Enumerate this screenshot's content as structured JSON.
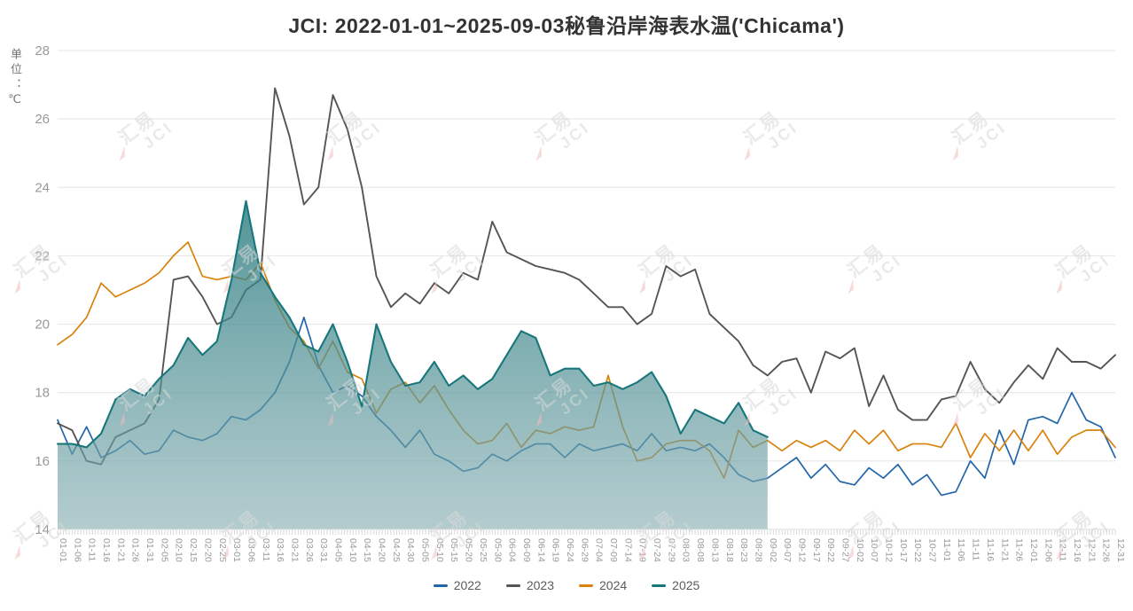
{
  "title": "JCI: 2022-01-01~2025-09-03秘鲁沿岸海表水温('Chicama')",
  "y_axis": {
    "unit_label": "单位：℃",
    "ticks": [
      14,
      16,
      18,
      20,
      22,
      24,
      26,
      28
    ]
  },
  "watermark": {
    "text_cn": "汇易",
    "text_en": "JCI"
  },
  "colors": {
    "grid": "#e4e4e4",
    "axis_line": "#d9d9d9",
    "tick_text": "#999999",
    "title_text": "#333333"
  },
  "chart_data": {
    "type": "line",
    "title": "JCI: 2022-01-01~2025-09-03秘鲁沿岸海表水温('Chicama')",
    "xlabel": "",
    "ylabel": "单位：℃",
    "ylim": [
      14,
      28
    ],
    "y_tick_step": 2,
    "grid": true,
    "legend_position": "bottom",
    "x": [
      "01-01",
      "01-06",
      "01-11",
      "01-16",
      "01-21",
      "01-26",
      "01-31",
      "02-05",
      "02-10",
      "02-15",
      "02-20",
      "02-25",
      "03-01",
      "03-06",
      "03-11",
      "03-16",
      "03-21",
      "03-26",
      "03-31",
      "04-05",
      "04-10",
      "04-15",
      "04-20",
      "04-25",
      "04-30",
      "05-05",
      "05-10",
      "05-15",
      "05-20",
      "05-25",
      "05-30",
      "06-04",
      "06-09",
      "06-14",
      "06-19",
      "06-24",
      "06-29",
      "07-04",
      "07-09",
      "07-14",
      "07-19",
      "07-24",
      "07-29",
      "08-03",
      "08-08",
      "08-13",
      "08-18",
      "08-23",
      "08-28",
      "09-02",
      "09-07",
      "09-12",
      "09-17",
      "09-22",
      "09-27",
      "10-02",
      "10-07",
      "10-12",
      "10-17",
      "10-22",
      "10-27",
      "11-01",
      "11-06",
      "11-11",
      "11-16",
      "11-21",
      "11-26",
      "12-01",
      "12-06",
      "12-11",
      "12-16",
      "12-21",
      "12-26",
      "12-31"
    ],
    "series": [
      {
        "name": "2022",
        "color": "#2266aa",
        "fill": false,
        "values": [
          17.2,
          16.2,
          17.0,
          16.1,
          16.3,
          16.6,
          16.2,
          16.3,
          16.9,
          16.7,
          16.6,
          16.8,
          17.3,
          17.2,
          17.5,
          18.0,
          18.9,
          20.2,
          18.8,
          18.0,
          18.2,
          17.9,
          17.3,
          16.9,
          16.4,
          16.9,
          16.2,
          16.0,
          15.7,
          15.8,
          16.2,
          16.0,
          16.3,
          16.5,
          16.5,
          16.1,
          16.5,
          16.3,
          16.4,
          16.5,
          16.3,
          16.8,
          16.3,
          16.4,
          16.3,
          16.5,
          16.1,
          15.6,
          15.4,
          15.5,
          15.8,
          16.1,
          15.5,
          15.9,
          15.4,
          15.3,
          15.8,
          15.5,
          15.9,
          15.3,
          15.6,
          15.0,
          15.1,
          16.0,
          15.5,
          16.9,
          15.9,
          17.2,
          17.3,
          17.1,
          18.0,
          17.2,
          17.0,
          16.1
        ]
      },
      {
        "name": "2023",
        "color": "#555555",
        "fill": false,
        "values": [
          17.1,
          16.9,
          16.0,
          15.9,
          16.7,
          16.9,
          17.1,
          17.8,
          21.3,
          21.4,
          20.8,
          20.0,
          20.2,
          21.0,
          21.3,
          26.9,
          25.5,
          23.5,
          24.0,
          26.7,
          25.7,
          24.0,
          21.4,
          20.5,
          20.9,
          20.6,
          21.2,
          20.9,
          21.5,
          21.3,
          23.0,
          22.1,
          21.9,
          21.7,
          21.6,
          21.5,
          21.3,
          20.9,
          20.5,
          20.5,
          20.0,
          20.3,
          21.7,
          21.4,
          21.6,
          20.3,
          19.9,
          19.5,
          18.8,
          18.5,
          18.9,
          19.0,
          18.0,
          19.2,
          19.0,
          19.3,
          17.6,
          18.5,
          17.5,
          17.2,
          17.2,
          17.8,
          17.9,
          18.9,
          18.1,
          17.7,
          18.3,
          18.8,
          18.4,
          19.3,
          18.9,
          18.9,
          18.7,
          19.1
        ]
      },
      {
        "name": "2024",
        "color": "#d8830e",
        "fill": false,
        "values": [
          19.4,
          19.7,
          20.2,
          21.2,
          20.8,
          21.0,
          21.2,
          21.5,
          22.0,
          22.4,
          21.4,
          21.3,
          21.4,
          21.3,
          21.8,
          20.7,
          19.9,
          19.5,
          18.7,
          19.5,
          18.6,
          18.4,
          17.4,
          18.1,
          18.3,
          17.7,
          18.2,
          17.5,
          16.9,
          16.5,
          16.6,
          17.1,
          16.4,
          16.9,
          16.8,
          17.0,
          16.9,
          17.0,
          18.5,
          17.0,
          16.0,
          16.1,
          16.5,
          16.6,
          16.6,
          16.3,
          15.5,
          16.9,
          16.4,
          16.6,
          16.3,
          16.6,
          16.4,
          16.6,
          16.3,
          16.9,
          16.5,
          16.9,
          16.3,
          16.5,
          16.5,
          16.4,
          17.1,
          16.1,
          16.8,
          16.3,
          16.9,
          16.3,
          16.9,
          16.2,
          16.7,
          16.9,
          16.9,
          16.4
        ]
      },
      {
        "name": "2025",
        "color": "#17777b",
        "fill": true,
        "fill_color_top": "rgba(32,118,122,0.78)",
        "fill_color_bottom": "rgba(133,173,177,0.62)",
        "values": [
          16.5,
          16.5,
          16.4,
          16.8,
          17.8,
          18.1,
          17.9,
          18.4,
          18.8,
          19.6,
          19.1,
          19.5,
          21.3,
          23.6,
          21.5,
          20.8,
          20.2,
          19.4,
          19.2,
          20.0,
          18.9,
          17.6,
          20.0,
          18.9,
          18.2,
          18.3,
          18.9,
          18.2,
          18.5,
          18.1,
          18.4,
          19.1,
          19.8,
          19.6,
          18.5,
          18.7,
          18.7,
          18.2,
          18.3,
          18.1,
          18.3,
          18.6,
          17.9,
          16.8,
          17.5,
          17.3,
          17.1,
          17.7,
          16.9,
          16.7,
          null,
          null,
          null,
          null,
          null,
          null,
          null,
          null,
          null,
          null,
          null,
          null,
          null,
          null,
          null,
          null,
          null,
          null,
          null,
          null,
          null,
          null,
          null,
          null
        ]
      }
    ]
  }
}
